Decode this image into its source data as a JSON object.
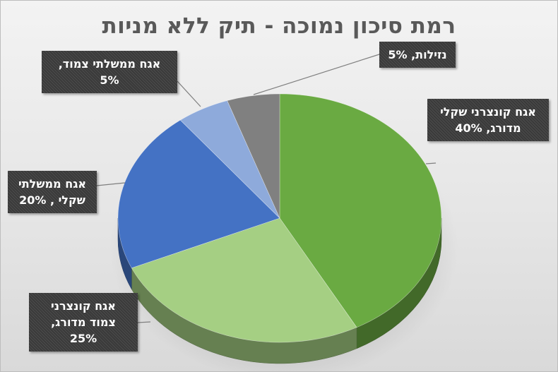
{
  "chart_data": {
    "type": "pie",
    "title": "רמת סיכון נמוכה - תיק ללא מניות",
    "slices": [
      {
        "name": "אגח קונצרני שקלי מדורג",
        "value": 40,
        "color": "#6aaa42",
        "label_lines": [
          "אגח קונצרני שקלי",
          "מדורג, 40%"
        ]
      },
      {
        "name": "אגח קונצרני צמוד מדורג",
        "value": 25,
        "color": "#a5cf83",
        "label_lines": [
          "אגח קונצרני",
          "צמוד מדורג,",
          "25%"
        ]
      },
      {
        "name": "אגח ממשלתי שקלי",
        "value": 20,
        "color": "#4472c4",
        "label_lines": [
          "אגח ממשלתי",
          "שקלי , 20%"
        ]
      },
      {
        "name": "אגח ממשלתי צמוד",
        "value": 5,
        "color": "#8eaadb",
        "label_lines": [
          "אגח ממשלתי צמוד,",
          "5%"
        ]
      },
      {
        "name": "נזילות",
        "value": 5,
        "color": "#808080",
        "label_lines": [
          "נזילות, 5%"
        ]
      }
    ],
    "start_direction": "12 o'clock",
    "rotation": "clockwise",
    "style": "3d-pie",
    "legend": "none"
  }
}
